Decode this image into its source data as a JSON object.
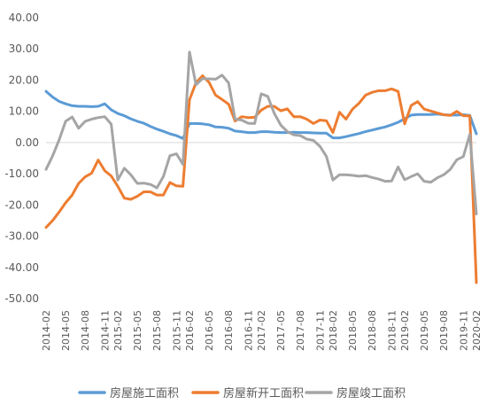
{
  "chart_data": {
    "type": "line",
    "title": "",
    "xlabel": "",
    "ylabel": "",
    "ylim": [
      -50,
      40
    ],
    "yticks": [
      "-50.00",
      "-40.00",
      "-30.00",
      "-20.00",
      "-10.00",
      "0.00",
      "10.00",
      "20.00",
      "30.00",
      "40.00"
    ],
    "x": [
      "2014-02",
      "2014-03",
      "2014-04",
      "2014-05",
      "2014-06",
      "2014-07",
      "2014-08",
      "2014-09",
      "2014-10",
      "2014-11",
      "2014-12",
      "2015-02",
      "2015-03",
      "2015-04",
      "2015-05",
      "2015-06",
      "2015-07",
      "2015-08",
      "2015-09",
      "2015-10",
      "2015-11",
      "2015-12",
      "2016-02",
      "2016-03",
      "2016-04",
      "2016-05",
      "2016-06",
      "2016-07",
      "2016-08",
      "2016-09",
      "2016-10",
      "2016-11",
      "2016-12",
      "2017-02",
      "2017-03",
      "2017-04",
      "2017-05",
      "2017-06",
      "2017-07",
      "2017-08",
      "2017-09",
      "2017-10",
      "2017-11",
      "2017-12",
      "2018-02",
      "2018-03",
      "2018-04",
      "2018-05",
      "2018-06",
      "2018-07",
      "2018-08",
      "2018-09",
      "2018-10",
      "2018-11",
      "2018-12",
      "2019-02",
      "2019-03",
      "2019-04",
      "2019-05",
      "2019-06",
      "2019-07",
      "2019-08",
      "2019-09",
      "2019-10",
      "2019-11",
      "2019-12",
      "2020-02"
    ],
    "xticks": [
      "2014-02",
      "2014-05",
      "2014-08",
      "2014-11",
      "2015-02",
      "2015-05",
      "2015-08",
      "2015-11",
      "2016-02",
      "2016-05",
      "2016-08",
      "2016-11",
      "2017-02",
      "2017-05",
      "2017-08",
      "2017-11",
      "2018-02",
      "2018-05",
      "2018-08",
      "2018-11",
      "2019-02",
      "2019-05",
      "2019-08",
      "2019-11",
      "2020-02"
    ],
    "series": [
      {
        "name": "房屋施工面积",
        "color": "#5B9BD5",
        "values": [
          16.4,
          14.6,
          13.2,
          12.4,
          11.8,
          11.6,
          11.6,
          11.5,
          11.6,
          12.4,
          10.5,
          9.3,
          8.6,
          7.6,
          6.8,
          6.2,
          5.2,
          4.3,
          3.6,
          2.8,
          2.2,
          1.3,
          6.1,
          6.1,
          6.0,
          5.7,
          5.0,
          4.9,
          4.6,
          3.7,
          3.5,
          3.2,
          3.2,
          3.5,
          3.5,
          3.3,
          3.2,
          3.2,
          3.3,
          3.2,
          3.2,
          3.1,
          3.0,
          3.0,
          1.5,
          1.5,
          1.9,
          2.4,
          2.9,
          3.5,
          4.0,
          4.5,
          5.0,
          5.7,
          6.5,
          7.6,
          8.8,
          9.0,
          9.0,
          9.0,
          9.1,
          8.9,
          8.8,
          8.8,
          8.9,
          8.7,
          2.8
        ]
      },
      {
        "name": "房屋新开工面积",
        "color": "#ED7D31",
        "values": [
          -27.2,
          -25.0,
          -22.3,
          -19.3,
          -16.8,
          -13.1,
          -11.0,
          -9.8,
          -5.6,
          -9.0,
          -10.7,
          -14.0,
          -17.8,
          -18.2,
          -17.2,
          -15.8,
          -15.8,
          -16.8,
          -16.8,
          -12.8,
          -13.9,
          -14.0,
          13.7,
          19.2,
          21.4,
          19.3,
          15.2,
          13.8,
          12.3,
          6.9,
          8.3,
          8.0,
          8.1,
          10.4,
          11.6,
          11.6,
          10.2,
          10.8,
          8.3,
          8.3,
          7.5,
          6.1,
          7.2,
          7.0,
          3.2,
          9.7,
          7.5,
          10.7,
          12.6,
          15.2,
          16.1,
          16.6,
          16.6,
          17.2,
          16.4,
          6.0,
          11.9,
          13.1,
          10.7,
          10.1,
          9.5,
          8.9,
          8.7,
          10.0,
          8.6,
          8.5,
          -44.9
        ]
      },
      {
        "name": "房屋竣工面积",
        "color": "#A5A5A5",
        "values": [
          -8.6,
          -4.3,
          0.8,
          6.8,
          8.2,
          4.6,
          6.8,
          7.5,
          8.0,
          8.3,
          5.9,
          -12.0,
          -8.2,
          -10.3,
          -13.1,
          -13.0,
          -13.4,
          -14.5,
          -10.9,
          -4.2,
          -3.6,
          -7.0,
          29.0,
          18.5,
          20.5,
          20.4,
          20.3,
          21.6,
          19.1,
          7.5,
          7.2,
          6.2,
          6.1,
          15.6,
          14.8,
          9.4,
          5.6,
          3.5,
          2.5,
          2.2,
          1.1,
          0.7,
          -1.2,
          -4.4,
          -12.0,
          -10.3,
          -10.3,
          -10.5,
          -10.8,
          -10.6,
          -11.2,
          -11.7,
          -12.4,
          -12.3,
          -7.8,
          -11.9,
          -10.9,
          -10.0,
          -12.4,
          -12.7,
          -11.3,
          -10.3,
          -8.6,
          -5.5,
          -4.5,
          2.6,
          -22.9
        ]
      }
    ],
    "legend": "bottom"
  }
}
